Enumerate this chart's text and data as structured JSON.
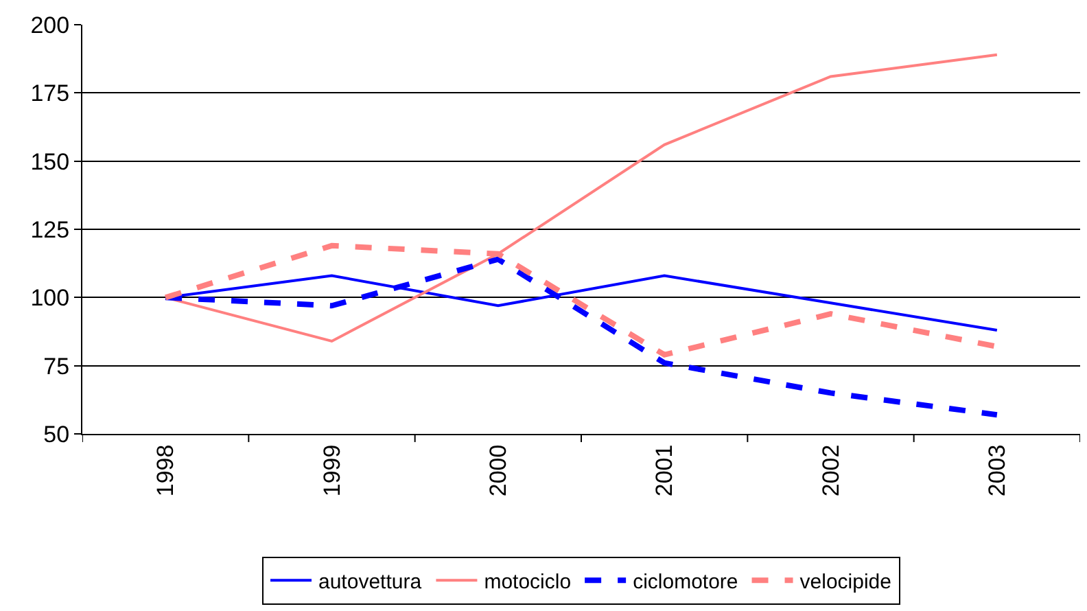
{
  "chart_data": {
    "type": "line",
    "categories": [
      "1998",
      "1999",
      "2000",
      "2001",
      "2002",
      "2003"
    ],
    "series": [
      {
        "name": "autovettura",
        "color": "#0000ff",
        "line_style": "solid",
        "values": [
          100,
          108,
          97,
          108,
          98,
          88
        ]
      },
      {
        "name": "motociclo",
        "color": "#ff8080",
        "line_style": "solid",
        "values": [
          100,
          84,
          116,
          156,
          181,
          189
        ]
      },
      {
        "name": "ciclomotore",
        "color": "#0000ff",
        "line_style": "dashed",
        "values": [
          100,
          97,
          114,
          76,
          65,
          57
        ]
      },
      {
        "name": "velocipide",
        "color": "#ff8080",
        "line_style": "dashed",
        "values": [
          100,
          119,
          116,
          79,
          94,
          82
        ]
      }
    ],
    "ylim": [
      50,
      200
    ],
    "yticks": [
      50,
      75,
      100,
      125,
      150,
      175,
      200
    ],
    "grid": "y",
    "legend": "bottom",
    "marker": "none"
  }
}
